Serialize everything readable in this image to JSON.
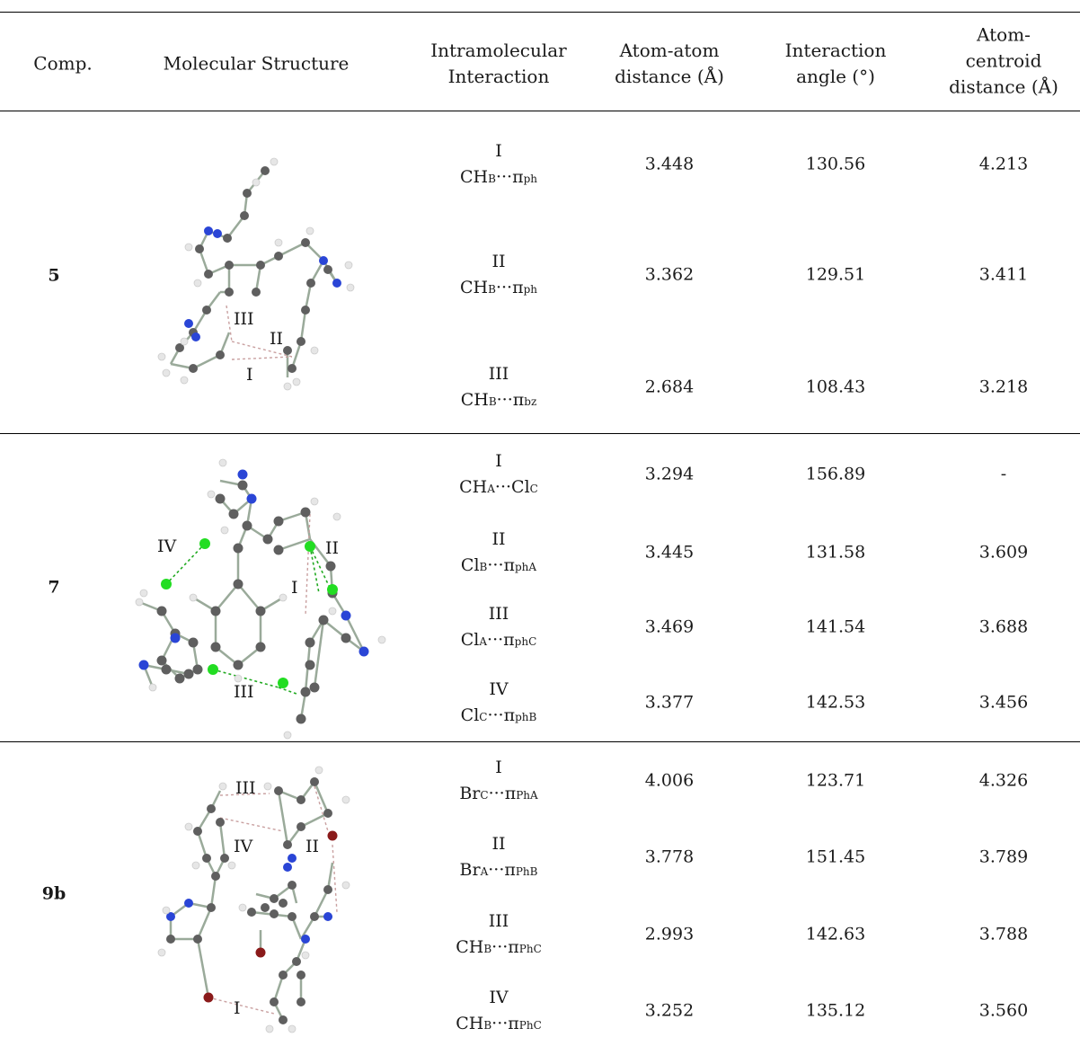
{
  "header": {
    "comp": "Comp.",
    "structure": "Molecular Structure",
    "interaction": [
      "Intramolecular",
      "Interaction"
    ],
    "distance": [
      "Atom-atom",
      "distance (Å)"
    ],
    "angle": [
      "Interaction",
      "angle (°)"
    ],
    "centroid": [
      "Atom-",
      "centroid",
      "distance (Å)"
    ]
  },
  "groups": [
    {
      "compound": "5",
      "molecule_labels": [
        "III",
        "II",
        "I"
      ],
      "rows": [
        {
          "roman": "I",
          "lhs": "CH",
          "lhs_sub": "B",
          "rhs": "π",
          "rhs_sub": "ph",
          "distance": "3.448",
          "angle": "130.56",
          "centroid": "4.213"
        },
        {
          "roman": "II",
          "lhs": "CH",
          "lhs_sub": "B",
          "rhs": "π",
          "rhs_sub": "ph",
          "distance": "3.362",
          "angle": "129.51",
          "centroid": "3.411"
        },
        {
          "roman": "III",
          "lhs": "CH",
          "lhs_sub": "B",
          "rhs": "π",
          "rhs_sub": "bz",
          "distance": "2.684",
          "angle": "108.43",
          "centroid": "3.218"
        }
      ]
    },
    {
      "compound": "7",
      "molecule_labels": [
        "IV",
        "II",
        "I",
        "III"
      ],
      "rows": [
        {
          "roman": "I",
          "lhs": "CH",
          "lhs_sub": "A",
          "rhs": "Cl",
          "rhs_sub": "C",
          "distance": "3.294",
          "angle": "156.89",
          "centroid": "-"
        },
        {
          "roman": "II",
          "lhs": "Cl",
          "lhs_sub": "B",
          "rhs": "π",
          "rhs_sub": "phA",
          "distance": "3.445",
          "angle": "131.58",
          "centroid": "3.609"
        },
        {
          "roman": "III",
          "lhs": "Cl",
          "lhs_sub": "A",
          "rhs": "π",
          "rhs_sub": "phC",
          "distance": "3.469",
          "angle": "141.54",
          "centroid": "3.688"
        },
        {
          "roman": "IV",
          "lhs": "Cl",
          "lhs_sub": "C",
          "rhs": "π",
          "rhs_sub": "phB",
          "distance": "3.377",
          "angle": "142.53",
          "centroid": "3.456"
        }
      ]
    },
    {
      "compound": "9b",
      "molecule_labels": [
        "III",
        "IV",
        "II",
        "I"
      ],
      "rows": [
        {
          "roman": "I",
          "lhs": "Br",
          "lhs_sub": "C",
          "rhs": "π",
          "rhs_sub": "PhA",
          "distance": "4.006",
          "angle": "123.71",
          "centroid": "4.326"
        },
        {
          "roman": "II",
          "lhs": "Br",
          "lhs_sub": "A",
          "rhs": "π",
          "rhs_sub": "PhB",
          "distance": "3.778",
          "angle": "151.45",
          "centroid": "3.789"
        },
        {
          "roman": "III",
          "lhs": "CH",
          "lhs_sub": "B",
          "rhs": "π",
          "rhs_sub": "PhC",
          "distance": "2.993",
          "angle": "142.63",
          "centroid": "3.788"
        },
        {
          "roman": "IV",
          "lhs": "CH",
          "lhs_sub": "B",
          "rhs": "π",
          "rhs_sub": "PhC",
          "distance": "3.252",
          "angle": "135.12",
          "centroid": "3.560"
        }
      ]
    }
  ],
  "colors": {
    "carbon": "#5f5f5f",
    "hydrogen": "#e6e6e6",
    "nitrogen": "#2a45d6",
    "chlorine": "#22dd22",
    "bromine": "#8a1a1a",
    "bond": "#9aaa9a"
  }
}
